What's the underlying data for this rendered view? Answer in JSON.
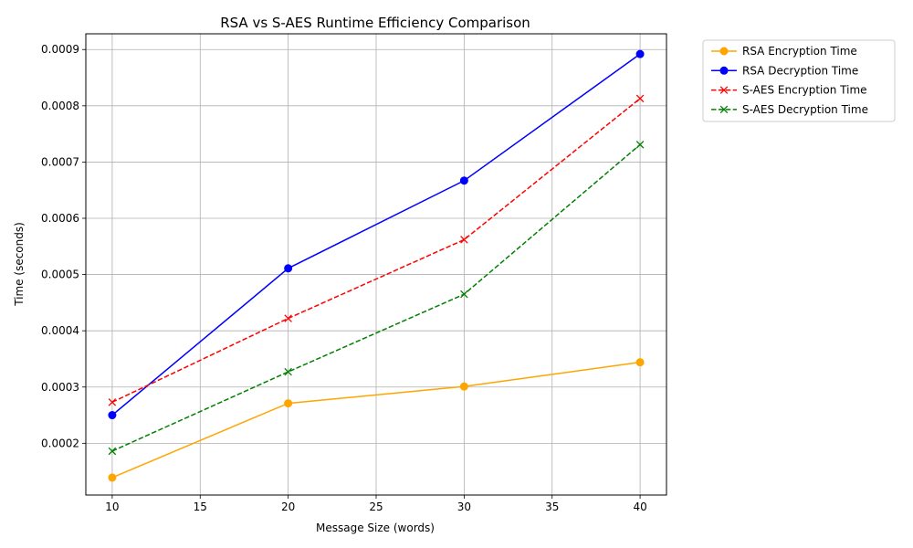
{
  "chart_data": {
    "type": "line",
    "title": "RSA vs S-AES Runtime Efficiency Comparison",
    "xlabel": "Message Size (words)",
    "ylabel": "Time (seconds)",
    "x": [
      10,
      20,
      30,
      40
    ],
    "xlim": [
      8.5,
      41.5
    ],
    "ylim": [
      0.000108,
      0.000928
    ],
    "xticks": [
      10,
      15,
      20,
      25,
      30,
      35,
      40
    ],
    "yticks": [
      0.0002,
      0.0003,
      0.0004,
      0.0005,
      0.0006,
      0.0007,
      0.0008,
      0.0009
    ],
    "ytick_labels": [
      "0.0002",
      "0.0003",
      "0.0004",
      "0.0005",
      "0.0006",
      "0.0007",
      "0.0008",
      "0.0009"
    ],
    "grid": true,
    "legend_position": "outside-top-right",
    "series": [
      {
        "name": "RSA Encryption Time",
        "values": [
          0.000139,
          0.000271,
          0.000301,
          0.000344
        ],
        "color": "#ffa500",
        "marker": "circle",
        "line_style": "solid"
      },
      {
        "name": "RSA Decryption Time",
        "values": [
          0.00025,
          0.000511,
          0.000667,
          0.000892
        ],
        "color": "#0000ff",
        "marker": "circle",
        "line_style": "solid"
      },
      {
        "name": "S-AES Encryption Time",
        "values": [
          0.000273,
          0.000422,
          0.000562,
          0.000813
        ],
        "color": "#ff0000",
        "marker": "x",
        "line_style": "dashed"
      },
      {
        "name": "S-AES Decryption Time",
        "values": [
          0.000186,
          0.000327,
          0.000465,
          0.000731
        ],
        "color": "#008000",
        "marker": "x",
        "line_style": "dashed"
      }
    ]
  }
}
